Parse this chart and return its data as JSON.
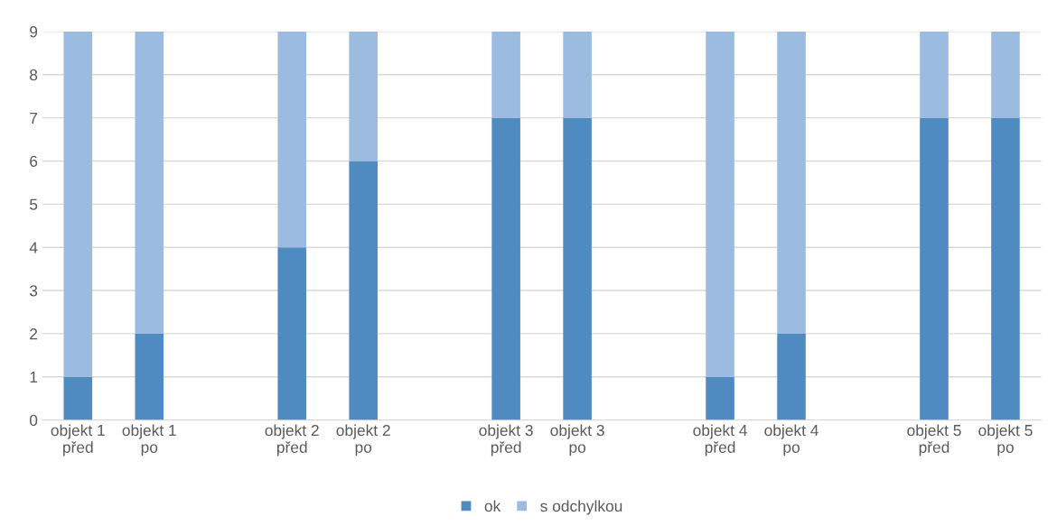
{
  "chart_data": {
    "type": "bar",
    "stacked": true,
    "categories": [
      "objekt 1\npřed",
      "objekt 1\npo",
      null,
      "objekt 2\npřed",
      "objekt 2\npo",
      null,
      "objekt 3\npřed",
      "objekt 3\npo",
      null,
      "objekt 4\npřed",
      "objekt 4\npo",
      null,
      "objekt 5\npřed",
      "objekt 5\npo"
    ],
    "series": [
      {
        "name": "ok",
        "color": "#4f8bc0",
        "values": [
          1,
          2,
          null,
          4,
          6,
          null,
          7,
          7,
          null,
          1,
          2,
          null,
          7,
          7
        ]
      },
      {
        "name": "s odchylkou",
        "color": "#9bbbe0",
        "values": [
          8,
          7,
          null,
          5,
          3,
          null,
          2,
          2,
          null,
          8,
          7,
          null,
          2,
          2
        ]
      }
    ],
    "ylim": [
      0,
      9
    ],
    "yticks": [
      0,
      1,
      2,
      3,
      4,
      5,
      6,
      7,
      8,
      9
    ],
    "grid": "y",
    "legend": "bottom"
  }
}
